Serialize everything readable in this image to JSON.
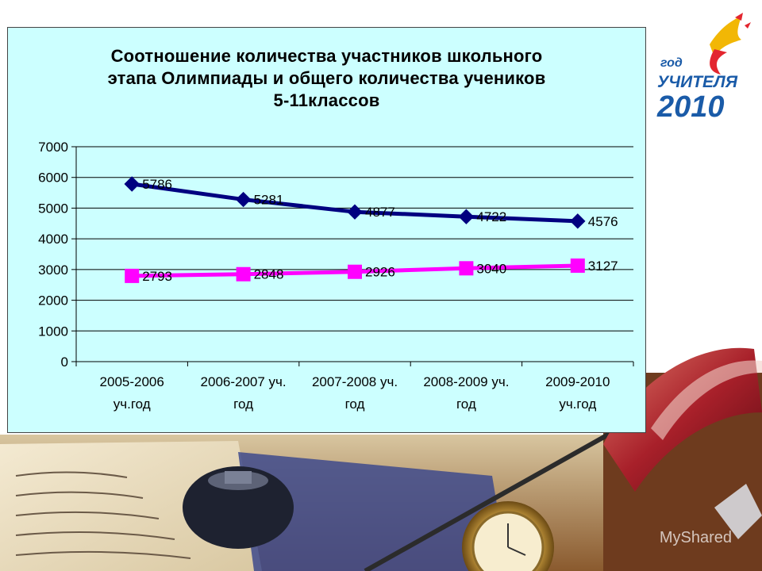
{
  "logo": {
    "line1": "год",
    "line2": "УЧИТЕЛЯ",
    "line3": "2010"
  },
  "watermark": "MyShared",
  "chart_data": {
    "type": "line",
    "title_lines": [
      "Соотношение количества участников школьного",
      "этапа Олимпиады и общего количества учеников",
      "5-11классов"
    ],
    "categories": [
      [
        "2005-2006",
        "уч.год"
      ],
      [
        "2006-2007 уч.",
        "год"
      ],
      [
        "2007-2008 уч.",
        "год"
      ],
      [
        "2008-2009 уч.",
        "год"
      ],
      [
        "2009-2010",
        "уч.год"
      ]
    ],
    "ylim": [
      0,
      7000
    ],
    "yticks": [
      0,
      1000,
      2000,
      3000,
      4000,
      5000,
      6000,
      7000
    ],
    "grid": true,
    "series": [
      {
        "color": "#000080",
        "marker": "diamond",
        "values": [
          5786,
          5281,
          4877,
          4722,
          4576
        ]
      },
      {
        "color": "#ff00ff",
        "marker": "square",
        "values": [
          2793,
          2848,
          2926,
          3040,
          3127
        ]
      }
    ]
  },
  "colors": {
    "chart_background": "#ccffff",
    "series1": "#000080",
    "series2": "#ff00ff",
    "logo_blue": "#1a5ba8",
    "logo_gold": "#f2b705",
    "logo_red": "#e3262f"
  }
}
